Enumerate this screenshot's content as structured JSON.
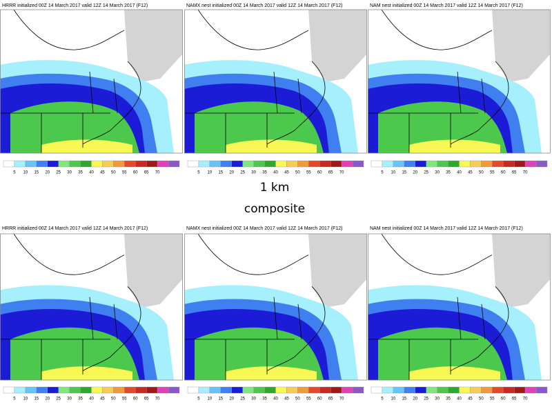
{
  "panels": [
    {
      "title": "HRRR initialized 00Z 14 March 2017 valid 12Z 14 March 2017 (F12)"
    },
    {
      "title": "NAMX nest initialized 00Z 14 March 2017 valid 12Z 14 March 2017 (F12)"
    },
    {
      "title": "NAM nest initialized 00Z 14 March 2017 valid 12Z 14 March 2017 (F12)"
    },
    {
      "title": "HRRR initialized 00Z 14 March 2017 valid 12Z 14 March 2017 (F12)"
    },
    {
      "title": "NAMX nest initialized 00Z 14 March 2017 valid 12Z 14 March 2017 (F12)"
    },
    {
      "title": "NAM nest initialized 00Z 14 March 2017 valid 12Z 14 March 2017 (F12)"
    }
  ],
  "labels": {
    "row1": "1 km",
    "row2": "composite"
  },
  "colorbar": {
    "ticks": [
      5,
      10,
      15,
      20,
      25,
      30,
      35,
      40,
      45,
      50,
      55,
      60,
      65,
      70
    ],
    "colors": [
      "#ffffff",
      "#a6f0fe",
      "#63c5fa",
      "#3f7ff0",
      "#1c1cd6",
      "#7ee87e",
      "#4cc94c",
      "#2fa82f",
      "#f8f855",
      "#f5cc55",
      "#f09a3c",
      "#e44a2a",
      "#c62a20",
      "#9e1a1a",
      "#e040b8",
      "#8a58c8"
    ]
  }
}
